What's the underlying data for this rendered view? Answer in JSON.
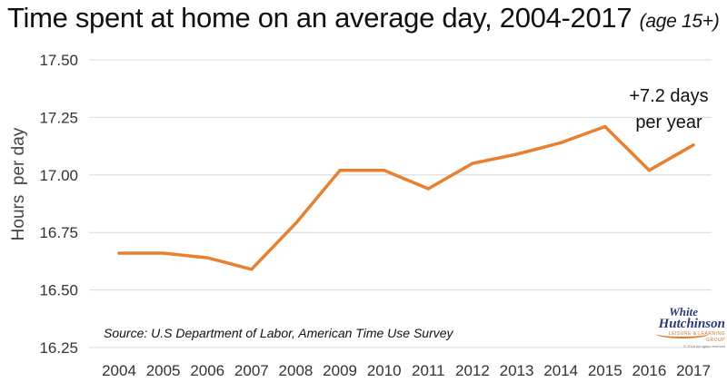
{
  "title": "Time spent at home on an average day, 2004-2017",
  "subtitle": "(age 15+)",
  "chart_data": {
    "type": "line",
    "title": "Time spent at home on an average day, 2004-2017",
    "subtitle": "(age 15+)",
    "xlabel": "",
    "ylabel": "Hours  per day",
    "ylim": [
      16.25,
      17.5
    ],
    "y_ticks": [
      "16.25",
      "16.50",
      "16.75",
      "17.00",
      "17.25",
      "17.50"
    ],
    "categories": [
      "2004",
      "2005",
      "2006",
      "2007",
      "2008",
      "2009",
      "2010",
      "2011",
      "2012",
      "2013",
      "2014",
      "2015",
      "2016",
      "2017"
    ],
    "series": [
      {
        "values": [
          16.66,
          16.66,
          16.64,
          16.59,
          16.79,
          17.02,
          17.02,
          16.94,
          17.05,
          17.09,
          17.14,
          17.21,
          17.02,
          17.13
        ]
      }
    ],
    "line_color": "#e8802f",
    "grid": true,
    "annotation": {
      "line1": "+7.2 days",
      "line2": "per year"
    },
    "source": "Source: U.S Department of Labor, American Time Use Survey"
  },
  "logo": {
    "line1": "White",
    "line2": "Hutchinson",
    "line3": "LEISURE & LEARNING GROUP",
    "line4": "© 2018 All rights reserved"
  }
}
